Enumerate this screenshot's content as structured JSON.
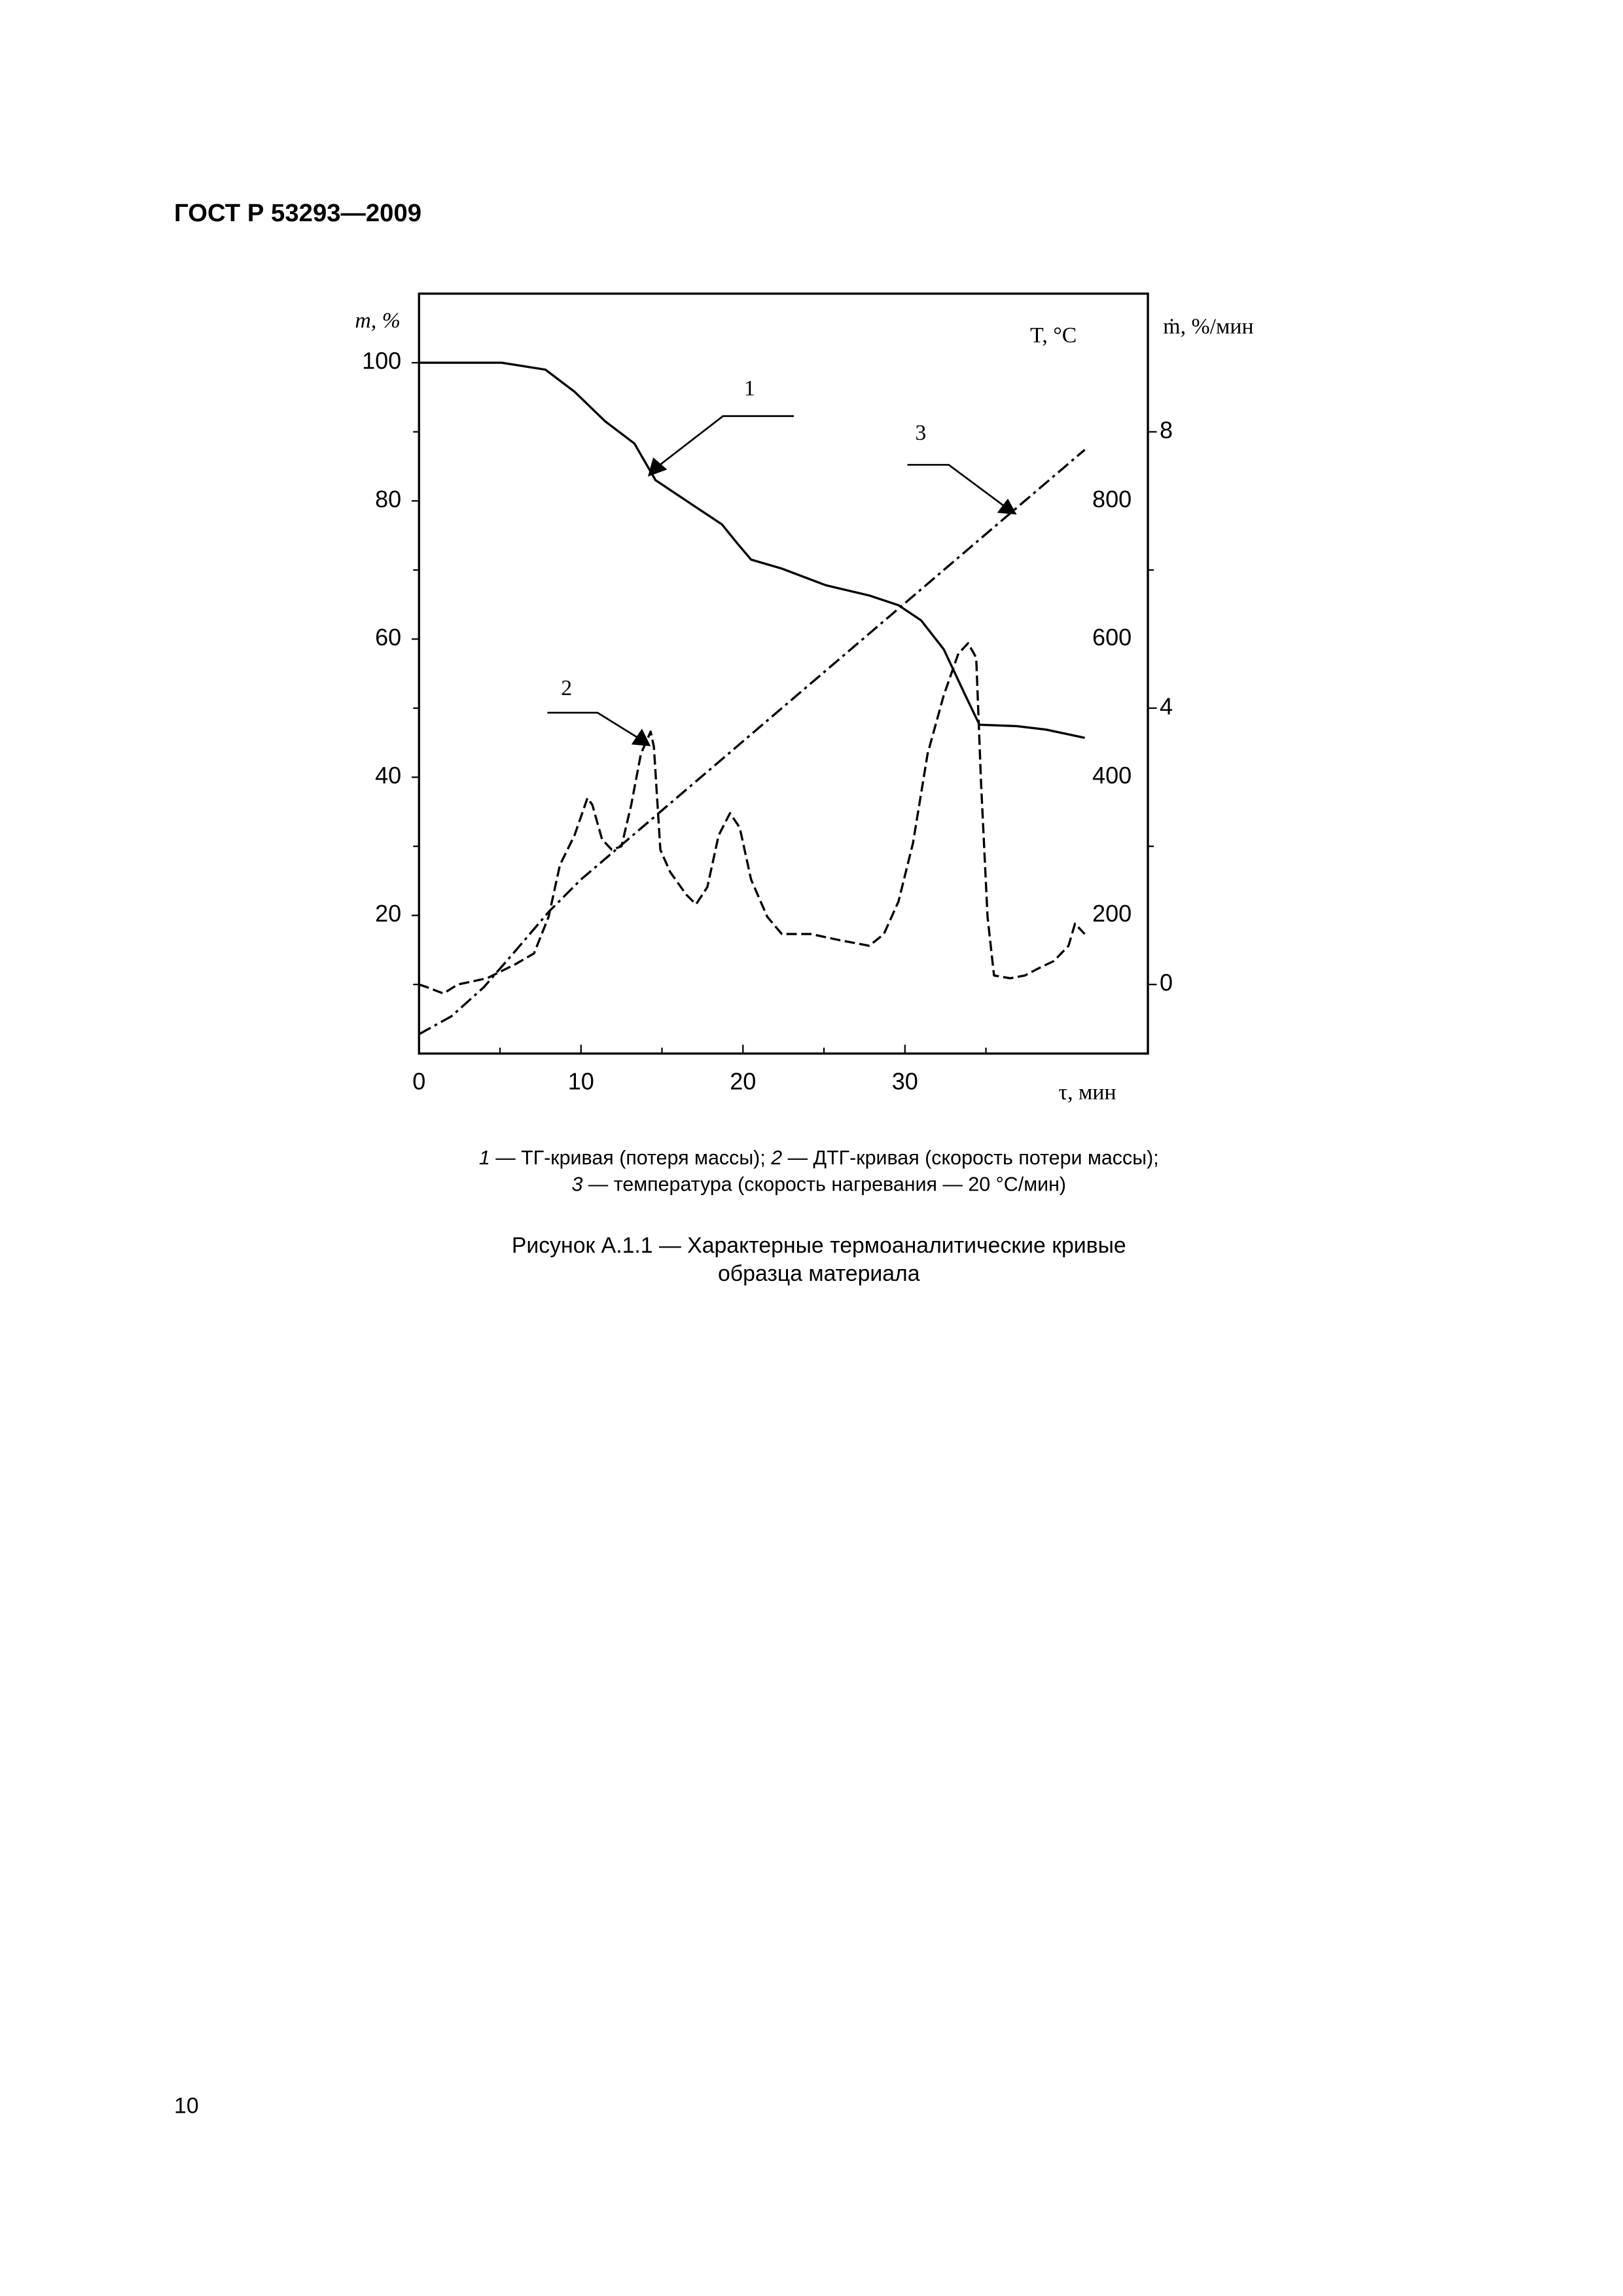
{
  "header": {
    "title": "ГОСТ Р 53293—2009"
  },
  "chart_data": {
    "type": "line",
    "xlabel": "τ, мин",
    "ylabel": "m, %",
    "y2label": "T, °C",
    "y3label": "ṁ, %/мин",
    "xlim": [
      0,
      45
    ],
    "xticks": [
      0,
      10,
      20,
      30
    ],
    "xminor": [
      5,
      15,
      25,
      35
    ],
    "ylim": [
      0,
      110
    ],
    "yticks": [
      20,
      40,
      60,
      80,
      100
    ],
    "yminor": [
      10,
      30,
      50,
      70,
      90
    ],
    "y2lim": [
      0,
      1100
    ],
    "y2ticks": [
      200,
      400,
      600,
      800
    ],
    "y3lim": [
      -1,
      10
    ],
    "y3ticks": [
      0,
      4,
      8
    ],
    "y3minor": [
      2,
      6
    ],
    "annotations": [
      "1",
      "2",
      "3"
    ],
    "series": [
      {
        "axis": "y",
        "color": "#000000",
        "line_style": "solid",
        "x": [
          0,
          5.1,
          7.8,
          9.6,
          11.5,
          13.3,
          14.6,
          16.9,
          18.7,
          19.6,
          20.5,
          22.4,
          25.1,
          27.8,
          29.6,
          31,
          32.4,
          33.7,
          34.6,
          36.9,
          38.7,
          41.1
        ],
        "values": [
          100,
          100,
          99,
          95.8,
          91.5,
          88.3,
          83,
          79.4,
          76.6,
          74,
          71.5,
          70.2,
          67.8,
          66.3,
          64.9,
          62.7,
          58.5,
          52,
          47.6,
          47.4,
          46.9,
          45.7
        ]
      },
      {
        "axis": "y3",
        "color": "#000000",
        "line_style": "dashed",
        "x": [
          0,
          0.5,
          1.5,
          2.4,
          4.2,
          6,
          7.1,
          8,
          8.7,
          9.6,
          10.4,
          10.7,
          11.3,
          11.9,
          12.5,
          13.1,
          13.7,
          14.3,
          14.5,
          14.9,
          15.5,
          16.5,
          17.1,
          17.8,
          18.5,
          19.2,
          19.8,
          20.5,
          21.5,
          22.4,
          24.2,
          26,
          27.8,
          28.7,
          29.6,
          30.5,
          31.4,
          32.4,
          33.3,
          33.9,
          34.4,
          34.7,
          35.1,
          35.5,
          36.5,
          37.4,
          38.3,
          39.2,
          40.1,
          40.5,
          41.1
        ],
        "values": [
          0,
          -0.04,
          -0.13,
          0,
          0.09,
          0.3,
          0.45,
          0.98,
          1.73,
          2.16,
          2.7,
          2.6,
          2.1,
          1.95,
          2.0,
          2.6,
          3.34,
          3.66,
          3.44,
          1.95,
          1.63,
          1.3,
          1.16,
          1.41,
          2.16,
          2.48,
          2.27,
          1.52,
          0.98,
          0.73,
          0.73,
          0.64,
          0.56,
          0.73,
          1.2,
          2.05,
          3.34,
          4.19,
          4.79,
          4.94,
          4.73,
          2.91,
          0.98,
          0.13,
          0.09,
          0.13,
          0.24,
          0.34,
          0.56,
          0.88,
          0.73
        ]
      },
      {
        "axis": "y2",
        "color": "#000000",
        "line_style": "dashdot",
        "x": [
          0,
          2,
          4,
          6,
          8,
          10,
          15,
          20,
          25,
          30,
          35,
          41.1
        ],
        "values": [
          28,
          54,
          96,
          150,
          205,
          252,
          352,
          452,
          552,
          652,
          752,
          874
        ]
      }
    ]
  },
  "legend": {
    "line1": [
      {
        "number": "1",
        "text": " — ТГ-кривая (потеря массы); "
      },
      {
        "number": "2",
        "text": " — ДТГ-кривая (скорость потери массы);"
      }
    ],
    "line2": [
      {
        "number": "3",
        "text": " — температура (скорость нагревания — 20 °С/мин)"
      }
    ]
  },
  "figure_title": [
    "Рисунок А.1.1 — Характерные термоаналитические кривые",
    "образца материала"
  ],
  "page_number": "10"
}
